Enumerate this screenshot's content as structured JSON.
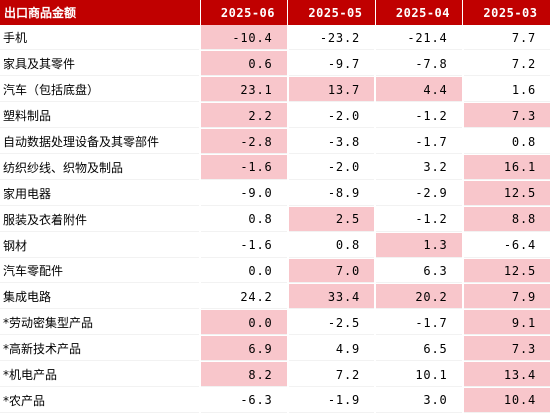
{
  "table": {
    "name_header": "出口商品金额",
    "columns": [
      "2025-06",
      "2025-05",
      "2025-04",
      "2025-03"
    ],
    "highlight_color": "#f8c6cb",
    "header_color": "#c00000",
    "rows": [
      {
        "name": "手机",
        "values": [
          "-10.4",
          "-23.2",
          "-21.4",
          "7.7"
        ],
        "highlight": [
          true,
          false,
          false,
          false
        ]
      },
      {
        "name": "家具及其零件",
        "values": [
          "0.6",
          "-9.7",
          "-7.8",
          "7.2"
        ],
        "highlight": [
          true,
          false,
          false,
          false
        ]
      },
      {
        "name": "汽车（包括底盘）",
        "values": [
          "23.1",
          "13.7",
          "4.4",
          "1.6"
        ],
        "highlight": [
          true,
          true,
          true,
          false
        ]
      },
      {
        "name": "塑料制品",
        "values": [
          "2.2",
          "-2.0",
          "-1.2",
          "7.3"
        ],
        "highlight": [
          true,
          false,
          false,
          true
        ]
      },
      {
        "name": "自动数据处理设备及其零部件",
        "values": [
          "-2.8",
          "-3.8",
          "-1.7",
          "0.8"
        ],
        "highlight": [
          true,
          false,
          false,
          false
        ]
      },
      {
        "name": "纺织纱线、织物及制品",
        "values": [
          "-1.6",
          "-2.0",
          "3.2",
          "16.1"
        ],
        "highlight": [
          true,
          false,
          false,
          true
        ]
      },
      {
        "name": "家用电器",
        "values": [
          "-9.0",
          "-8.9",
          "-2.9",
          "12.5"
        ],
        "highlight": [
          false,
          false,
          false,
          true
        ]
      },
      {
        "name": "服装及衣着附件",
        "values": [
          "0.8",
          "2.5",
          "-1.2",
          "8.8"
        ],
        "highlight": [
          false,
          true,
          false,
          true
        ]
      },
      {
        "name": "钢材",
        "values": [
          "-1.6",
          "0.8",
          "1.3",
          "-6.4"
        ],
        "highlight": [
          false,
          false,
          true,
          false
        ]
      },
      {
        "name": "汽车零配件",
        "values": [
          "0.0",
          "7.0",
          "6.3",
          "12.5"
        ],
        "highlight": [
          false,
          true,
          false,
          true
        ]
      },
      {
        "name": "集成电路",
        "values": [
          "24.2",
          "33.4",
          "20.2",
          "7.9"
        ],
        "highlight": [
          false,
          true,
          true,
          true
        ]
      },
      {
        "name": "*劳动密集型产品",
        "values": [
          "0.0",
          "-2.5",
          "-1.7",
          "9.1"
        ],
        "highlight": [
          true,
          false,
          false,
          true
        ]
      },
      {
        "name": "*高新技术产品",
        "values": [
          "6.9",
          "4.9",
          "6.5",
          "7.3"
        ],
        "highlight": [
          true,
          false,
          false,
          true
        ]
      },
      {
        "name": "*机电产品",
        "values": [
          "8.2",
          "7.2",
          "10.1",
          "13.4"
        ],
        "highlight": [
          true,
          false,
          false,
          true
        ]
      },
      {
        "name": "*农产品",
        "values": [
          "-6.3",
          "-1.9",
          "3.0",
          "10.4"
        ],
        "highlight": [
          false,
          false,
          false,
          true
        ]
      }
    ]
  }
}
